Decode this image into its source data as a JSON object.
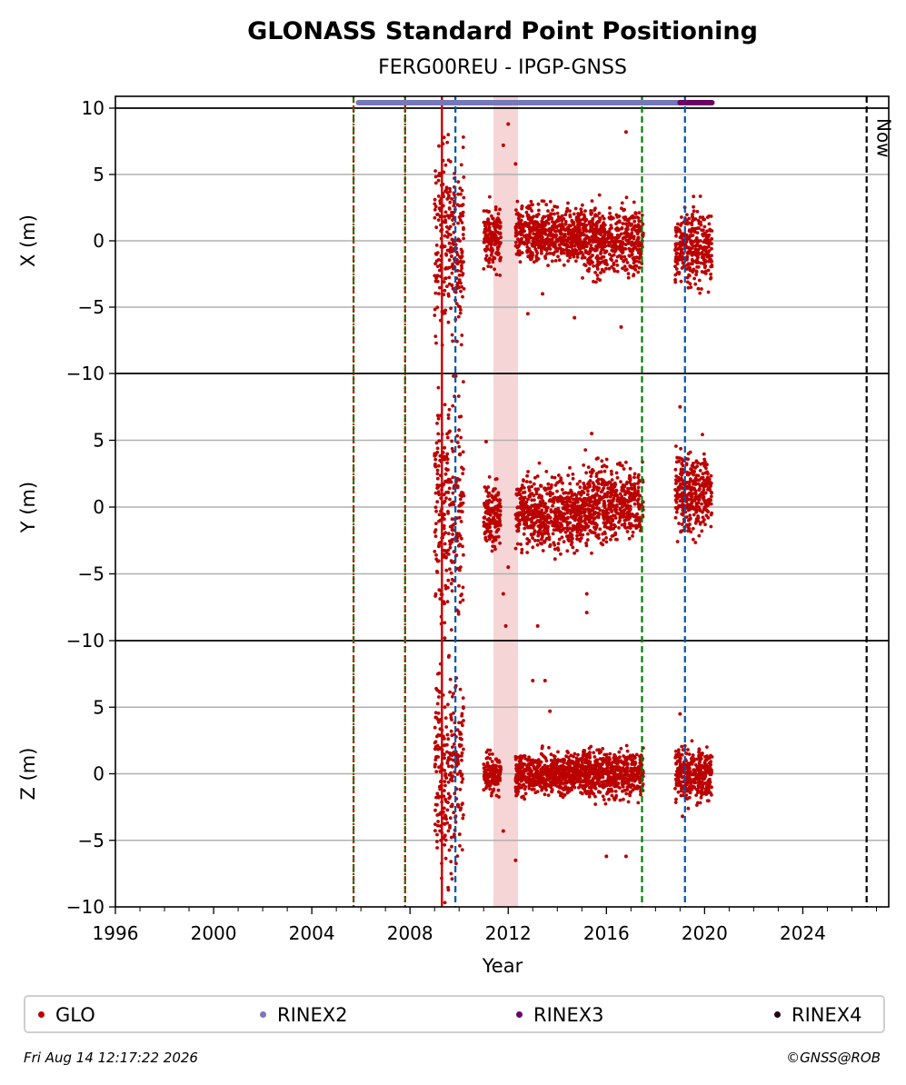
{
  "chart_data": {
    "type": "scatter",
    "title": "GLONASS Standard Point Positioning",
    "subtitle": "FERG00REU - IPGP-GNSS",
    "xlabel": "Year",
    "xlim": [
      1996,
      2027.5
    ],
    "x_ticks": [
      "1996",
      "2000",
      "2004",
      "2008",
      "2012",
      "2016",
      "2020",
      "2024"
    ],
    "x_tick_values": [
      1996,
      2000,
      2004,
      2008,
      2012,
      2016,
      2020,
      2024
    ],
    "panels": [
      {
        "ylabel": "X (m)",
        "ylim": [
          -10,
          10.8
        ],
        "y_ticks": [
          "10",
          "5",
          "0",
          "−5",
          "−10"
        ],
        "segments": [
          {
            "x": [
              2009.0,
              2010.2
            ],
            "mean": 0.0,
            "spread": 7.5
          },
          {
            "x": [
              2011.0,
              2011.7
            ],
            "mean": 0.3,
            "spread": 2.5
          },
          {
            "x": [
              2012.3,
              2015.0
            ],
            "mean": 0.5,
            "spread": 2.2
          },
          {
            "x": [
              2015.0,
              2017.5
            ],
            "mean": 0.0,
            "spread": 2.6
          },
          {
            "x": [
              2018.8,
              2020.3
            ],
            "mean": -0.5,
            "spread": 3.0
          }
        ],
        "outliers": [
          [
            2012.0,
            8.8
          ],
          [
            2012.3,
            5.8
          ],
          [
            2012.8,
            -5.5
          ],
          [
            2013.4,
            -4.0
          ],
          [
            2014.7,
            -5.8
          ],
          [
            2016.6,
            -6.5
          ],
          [
            2016.8,
            8.2
          ],
          [
            2011.8,
            7.2
          ]
        ]
      },
      {
        "ylabel": "Y (m)",
        "ylim": [
          -10,
          10
        ],
        "y_ticks": [
          "5",
          "0",
          "−5",
          "−10"
        ],
        "segments": [
          {
            "x": [
              2009.0,
              2010.2
            ],
            "mean": 0.0,
            "spread": 9.0
          },
          {
            "x": [
              2011.0,
              2011.7
            ],
            "mean": -0.5,
            "spread": 2.8
          },
          {
            "x": [
              2012.3,
              2015.0
            ],
            "mean": -0.5,
            "spread": 2.8
          },
          {
            "x": [
              2015.0,
              2017.5
            ],
            "mean": 0.3,
            "spread": 3.0
          },
          {
            "x": [
              2018.8,
              2020.3
            ],
            "mean": 1.0,
            "spread": 3.2
          }
        ],
        "outliers": [
          [
            2011.8,
            -6.5
          ],
          [
            2011.9,
            -8.9
          ],
          [
            2013.2,
            -8.9
          ],
          [
            2015.2,
            -7.9
          ],
          [
            2015.2,
            -6.5
          ],
          [
            2012.0,
            -4.5
          ],
          [
            2011.1,
            4.9
          ],
          [
            2015.4,
            5.5
          ],
          [
            2019.0,
            7.5
          ]
        ]
      },
      {
        "ylabel": "Z (m)",
        "ylim": [
          -10,
          10
        ],
        "y_ticks": [
          "5",
          "0",
          "−5",
          "−10"
        ],
        "segments": [
          {
            "x": [
              2009.0,
              2010.2
            ],
            "mean": 0.0,
            "spread": 8.5
          },
          {
            "x": [
              2011.0,
              2011.7
            ],
            "mean": 0.0,
            "spread": 1.6
          },
          {
            "x": [
              2012.3,
              2015.0
            ],
            "mean": 0.0,
            "spread": 1.6
          },
          {
            "x": [
              2015.0,
              2017.5
            ],
            "mean": 0.0,
            "spread": 2.0
          },
          {
            "x": [
              2018.8,
              2020.3
            ],
            "mean": 0.0,
            "spread": 2.0
          }
        ],
        "outliers": [
          [
            2013.0,
            7.0
          ],
          [
            2013.5,
            7.0
          ],
          [
            2013.7,
            4.7
          ],
          [
            2012.3,
            -6.5
          ],
          [
            2011.8,
            -4.3
          ],
          [
            2016.0,
            -6.2
          ],
          [
            2016.8,
            -6.2
          ],
          [
            2019.0,
            4.5
          ],
          [
            2019.1,
            -3.2
          ]
        ]
      }
    ],
    "vertical_lines": [
      {
        "x": 2005.7,
        "color": "#008000",
        "style": "dashed"
      },
      {
        "x": 2005.7,
        "color": "#cc0000",
        "style": "dotted"
      },
      {
        "x": 2007.8,
        "color": "#008000",
        "style": "dashed"
      },
      {
        "x": 2007.8,
        "color": "#cc0000",
        "style": "dotted"
      },
      {
        "x": 2009.3,
        "color": "#cc0000",
        "style": "solid"
      },
      {
        "x": 2009.85,
        "color": "#0055aa",
        "style": "dashed"
      },
      {
        "x": 2017.45,
        "color": "#008000",
        "style": "dashed"
      },
      {
        "x": 2019.2,
        "color": "#0055aa",
        "style": "dashed"
      },
      {
        "x": 2026.6,
        "color": "#000000",
        "style": "dashed"
      }
    ],
    "shaded_band": {
      "x": [
        2011.4,
        2012.4
      ],
      "color": "#f5d5d5"
    },
    "now_label": "Now",
    "rinex_bar": {
      "rinex2": [
        2005.9,
        2019.0
      ],
      "rinex3": [
        2019.0,
        2020.3
      ]
    },
    "legend": [
      {
        "label": "GLO",
        "color": "#bb0000"
      },
      {
        "label": "RINEX2",
        "color": "#7777bb"
      },
      {
        "label": "RINEX3",
        "color": "#6a0066"
      },
      {
        "label": "RINEX4",
        "color": "#220011"
      }
    ],
    "grid": true
  },
  "footer": {
    "timestamp": "Fri Aug 14 12:17:22 2026",
    "credit": "©GNSS@ROB"
  }
}
